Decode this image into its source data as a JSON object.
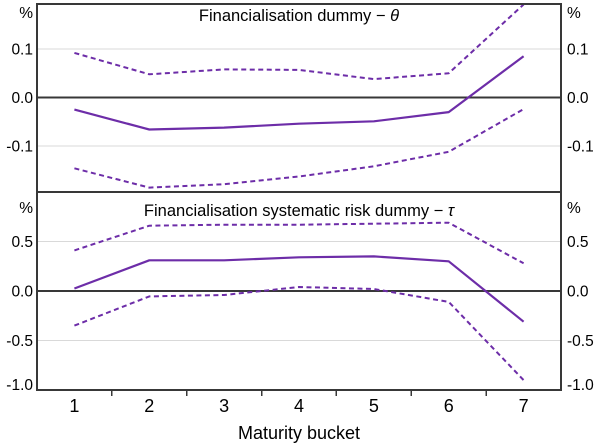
{
  "x_axis": {
    "title": "Maturity bucket",
    "labels": [
      "1",
      "2",
      "3",
      "4",
      "5",
      "6",
      "7"
    ]
  },
  "colors": {
    "line": "#6D2DA8",
    "grid": "#D9D9D9",
    "axis": "#383838",
    "text": "#000000",
    "background": "#FFFFFF"
  },
  "chart_data": [
    {
      "type": "line",
      "panel": "top",
      "title": "Financialisation dummy − θ",
      "title_text": "Financialisation dummy −",
      "title_symbol": "θ",
      "unit_left": "%",
      "unit_right": "%",
      "ylim": [
        -0.195,
        0.193
      ],
      "grid": true,
      "legend": "none",
      "yticks": [
        {
          "value": 0.1,
          "label": "0.1"
        },
        {
          "value": 0.0,
          "label": "0.0"
        },
        {
          "value": -0.1,
          "label": "-0.1"
        }
      ],
      "x_categories": [
        "1",
        "2",
        "3",
        "4",
        "5",
        "6",
        "7"
      ],
      "series": [
        {
          "name": "upper-confidence-band",
          "style": "dashed",
          "values": [
            0.092,
            0.048,
            0.058,
            0.057,
            0.038,
            0.05,
            0.192
          ]
        },
        {
          "name": "point-estimate",
          "style": "solid",
          "values": [
            -0.025,
            -0.066,
            -0.062,
            -0.054,
            -0.049,
            -0.03,
            0.085
          ]
        },
        {
          "name": "lower-confidence-band",
          "style": "dashed",
          "values": [
            -0.146,
            -0.186,
            -0.179,
            -0.163,
            -0.142,
            -0.112,
            -0.024
          ]
        }
      ]
    },
    {
      "type": "line",
      "panel": "bottom",
      "title": "Financialisation systematic risk dummy − τ",
      "title_text": "Financialisation systematic risk dummy −",
      "title_symbol": "τ",
      "unit_left": "%",
      "unit_right": "%",
      "ylim": [
        -1.0,
        1.0
      ],
      "grid": true,
      "legend": "none",
      "yticks": [
        {
          "value": 0.5,
          "label": "0.5"
        },
        {
          "value": 0.0,
          "label": "0.0"
        },
        {
          "value": -0.5,
          "label": "-0.5"
        },
        {
          "value": -1.0,
          "label": "-1.0"
        }
      ],
      "x_categories": [
        "1",
        "2",
        "3",
        "4",
        "5",
        "6",
        "7"
      ],
      "series": [
        {
          "name": "upper-confidence-band",
          "style": "dashed",
          "values": [
            0.41,
            0.66,
            0.67,
            0.67,
            0.68,
            0.69,
            0.28
          ]
        },
        {
          "name": "point-estimate",
          "style": "solid",
          "values": [
            0.025,
            0.31,
            0.31,
            0.34,
            0.35,
            0.3,
            -0.31
          ]
        },
        {
          "name": "lower-confidence-band",
          "style": "dashed",
          "values": [
            -0.35,
            -0.055,
            -0.04,
            0.04,
            0.02,
            -0.11,
            -0.9
          ]
        }
      ]
    }
  ]
}
